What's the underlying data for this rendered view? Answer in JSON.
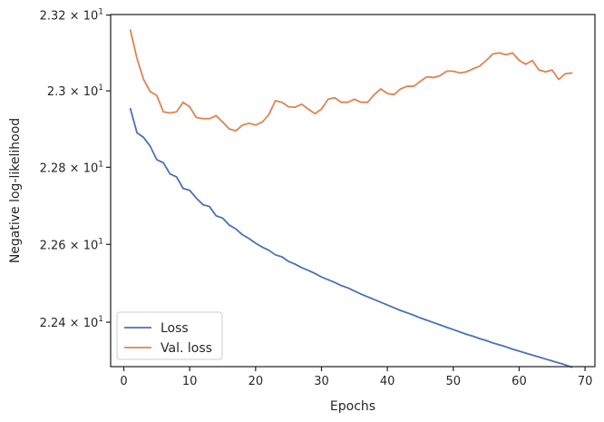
{
  "chart_data": {
    "type": "line",
    "xlabel": "Epochs",
    "ylabel": "Negative log-likelihood",
    "yscale": "log",
    "xlim": [
      -2,
      71.5
    ],
    "ylim": [
      22.2865,
      23.2015
    ],
    "grid": false,
    "legend_position": "bottom-left",
    "x_ticks": [
      0,
      10,
      20,
      30,
      40,
      50,
      60,
      70
    ],
    "x_tick_labels": [
      "0",
      "10",
      "20",
      "30",
      "40",
      "50",
      "60",
      "70"
    ],
    "y_ticks": [
      {
        "value": 22.4,
        "mantissa": "2.24",
        "times": "×",
        "base": "10",
        "exp": "1"
      },
      {
        "value": 22.6,
        "mantissa": "2.26",
        "times": "×",
        "base": "10",
        "exp": "1"
      },
      {
        "value": 22.8,
        "mantissa": "2.28",
        "times": "×",
        "base": "10",
        "exp": "1"
      },
      {
        "value": 23.0,
        "mantissa": "2.3",
        "times": "×",
        "base": "10",
        "exp": "1"
      },
      {
        "value": 23.2,
        "mantissa": "2.32",
        "times": "×",
        "base": "10",
        "exp": "1"
      }
    ],
    "x": [
      1,
      2,
      3,
      4,
      5,
      6,
      7,
      8,
      9,
      10,
      11,
      12,
      13,
      14,
      15,
      16,
      17,
      18,
      19,
      20,
      21,
      22,
      23,
      24,
      25,
      26,
      27,
      28,
      29,
      30,
      31,
      32,
      33,
      34,
      35,
      36,
      37,
      38,
      39,
      40,
      41,
      42,
      43,
      44,
      45,
      46,
      47,
      48,
      49,
      50,
      51,
      52,
      53,
      54,
      55,
      56,
      57,
      58,
      59,
      60,
      61,
      62,
      63,
      64,
      65,
      66,
      67,
      68
    ],
    "series": [
      {
        "name": "Loss",
        "color": "#4c72b0",
        "values": [
          22.953,
          22.89,
          22.878,
          22.855,
          22.82,
          22.812,
          22.783,
          22.775,
          22.745,
          22.74,
          22.72,
          22.703,
          22.698,
          22.674,
          22.668,
          22.65,
          22.64,
          22.625,
          22.615,
          22.603,
          22.593,
          22.585,
          22.573,
          22.568,
          22.556,
          22.549,
          22.54,
          22.533,
          22.525,
          22.516,
          22.509,
          22.502,
          22.494,
          22.488,
          22.48,
          22.472,
          22.465,
          22.458,
          22.451,
          22.444,
          22.437,
          22.43,
          22.424,
          22.418,
          22.411,
          22.405,
          22.399,
          22.393,
          22.387,
          22.381,
          22.375,
          22.369,
          22.364,
          22.358,
          22.353,
          22.347,
          22.342,
          22.337,
          22.331,
          22.326,
          22.321,
          22.316,
          22.311,
          22.306,
          22.301,
          22.296,
          22.291,
          22.285
        ]
      },
      {
        "name": "Val. loss",
        "color": "#dd8452",
        "values": [
          23.16,
          23.085,
          23.03,
          22.998,
          22.988,
          22.945,
          22.942,
          22.945,
          22.97,
          22.958,
          22.93,
          22.927,
          22.927,
          22.935,
          22.918,
          22.9,
          22.895,
          22.91,
          22.915,
          22.91,
          22.918,
          22.937,
          22.974,
          22.97,
          22.958,
          22.957,
          22.965,
          22.952,
          22.94,
          22.952,
          22.978,
          22.982,
          22.97,
          22.97,
          22.978,
          22.97,
          22.97,
          22.99,
          23.005,
          22.993,
          22.99,
          23.005,
          23.012,
          23.012,
          23.025,
          23.037,
          23.035,
          23.04,
          23.052,
          23.052,
          23.047,
          23.05,
          23.058,
          23.065,
          23.08,
          23.097,
          23.1,
          23.095,
          23.1,
          23.08,
          23.07,
          23.08,
          23.055,
          23.05,
          23.055,
          23.03,
          23.045,
          23.047
        ]
      }
    ]
  }
}
